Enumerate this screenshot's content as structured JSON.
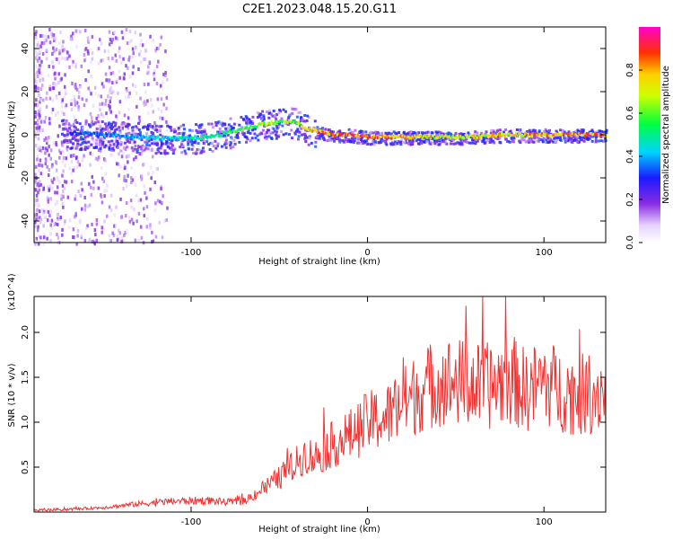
{
  "figure_title": "C2E1.2023.048.15.20.G11",
  "chart_data": [
    {
      "type": "heatmap",
      "xlabel": "Height of straight line (km)",
      "ylabel": "Frequency (Hz)",
      "xlim": [
        -189,
        135
      ],
      "ylim": [
        -50,
        50
      ],
      "xticks": [
        -100,
        0,
        100
      ],
      "yticks": [
        -40,
        -20,
        0,
        20,
        40
      ],
      "colorbar": {
        "label": "Normalized spectral amplitude",
        "range": [
          0,
          1
        ],
        "ticks": [
          "0.0",
          "0.2",
          "0.4",
          "0.6",
          "0.8"
        ],
        "colormap": "rainbow (white to violet to red to magenta)"
      },
      "ridge": {
        "x": [
          -170,
          -150,
          -130,
          -110,
          -90,
          -75,
          -60,
          -50,
          -42,
          -38,
          -32,
          -25,
          -20,
          -10,
          0,
          20,
          50,
          80,
          100,
          135
        ],
        "freq": [
          1,
          0,
          -1,
          -2,
          -1,
          2,
          5,
          6,
          6,
          4,
          2,
          1,
          0,
          0,
          -1,
          -1,
          -1,
          0,
          0,
          0
        ],
        "peak": [
          0.35,
          0.4,
          0.45,
          0.5,
          0.55,
          0.62,
          0.68,
          0.7,
          0.65,
          0.75,
          0.85,
          0.9,
          0.92,
          0.95,
          0.95,
          0.8,
          0.75,
          0.8,
          0.85,
          0.95
        ]
      }
    },
    {
      "type": "line",
      "xlabel": "Height of straight line (km)",
      "ylabel": "SNR (10 * v/v)",
      "y_multiplier": "(x10^4)",
      "xlim": [
        -189,
        135
      ],
      "ylim": [
        0,
        2.4
      ],
      "xticks": [
        -100,
        0,
        100
      ],
      "yticks": [
        "0.5",
        "1.0",
        "1.5",
        "2.0"
      ],
      "color": "#ee3333",
      "series": [
        {
          "x": [
            -189,
            -170,
            -150,
            -130,
            -110,
            -90,
            -80,
            -70,
            -60,
            -50,
            -40,
            -35,
            -30,
            -20,
            -10,
            0,
            10,
            20,
            30,
            40,
            50,
            60,
            70,
            80,
            90,
            100,
            110,
            120,
            130,
            135
          ],
          "y": [
            0.02,
            0.03,
            0.05,
            0.09,
            0.12,
            0.13,
            0.11,
            0.12,
            0.25,
            0.38,
            0.55,
            0.65,
            0.6,
            0.75,
            0.85,
            1.0,
            1.05,
            1.2,
            1.35,
            1.45,
            1.45,
            1.4,
            1.4,
            1.5,
            1.35,
            1.45,
            1.35,
            1.3,
            1.35,
            1.35
          ]
        }
      ]
    }
  ]
}
